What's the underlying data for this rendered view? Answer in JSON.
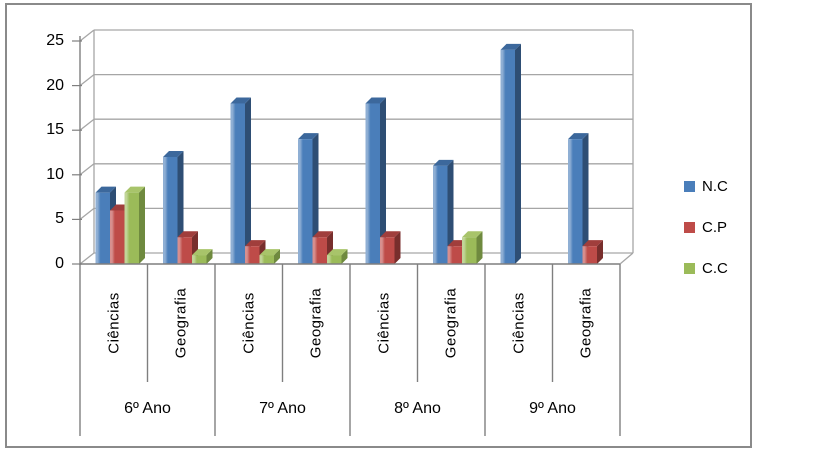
{
  "chart_data": {
    "type": "bar",
    "projection": "3d",
    "title": "",
    "xlabel": "",
    "ylabel": "",
    "ylim": [
      0,
      25
    ],
    "yticks": [
      0,
      5,
      10,
      15,
      20,
      25
    ],
    "ytick_labels": [
      "0",
      "5",
      "10",
      "15",
      "20",
      "25"
    ],
    "grid": true,
    "legend_position": "right",
    "group_labels": [
      "6º Ano",
      "7º Ano",
      "8º Ano",
      "9º Ano"
    ],
    "subgroup_labels": [
      "Ciências",
      "Geografia"
    ],
    "subject_row": [
      "Ciências",
      "Geografia",
      "Ciências",
      "Geografia",
      "Ciências",
      "Geografia",
      "Ciências",
      "Geografia"
    ],
    "categories": [
      "6º Ano Ciências",
      "6º Ano Geografia",
      "7º Ano Ciências",
      "7º Ano Geografia",
      "8º Ano Ciências",
      "8º Ano Geografia",
      "9º Ano Ciências",
      "9º Ano Geografia"
    ],
    "series": [
      {
        "name": "N.C",
        "color": "#4a7eba",
        "top_color": "#3c689c",
        "side_color": "#2e4e74",
        "values": [
          8,
          12,
          18,
          14,
          18,
          11,
          24,
          14
        ]
      },
      {
        "name": "C.P",
        "color": "#be4b48",
        "top_color": "#a03e3c",
        "side_color": "#782e2c",
        "values": [
          6,
          3,
          2,
          3,
          3,
          2,
          0,
          2
        ]
      },
      {
        "name": "C.C",
        "color": "#9bbb59",
        "top_color": "#a8c46a",
        "side_color": "#6f8a3f",
        "values": [
          8,
          1,
          1,
          1,
          0,
          3,
          0,
          0
        ]
      }
    ],
    "colors": {
      "gridline": "#a6a6a6",
      "axis": "#7f7f7f",
      "frame": "#8a8a8a"
    }
  }
}
